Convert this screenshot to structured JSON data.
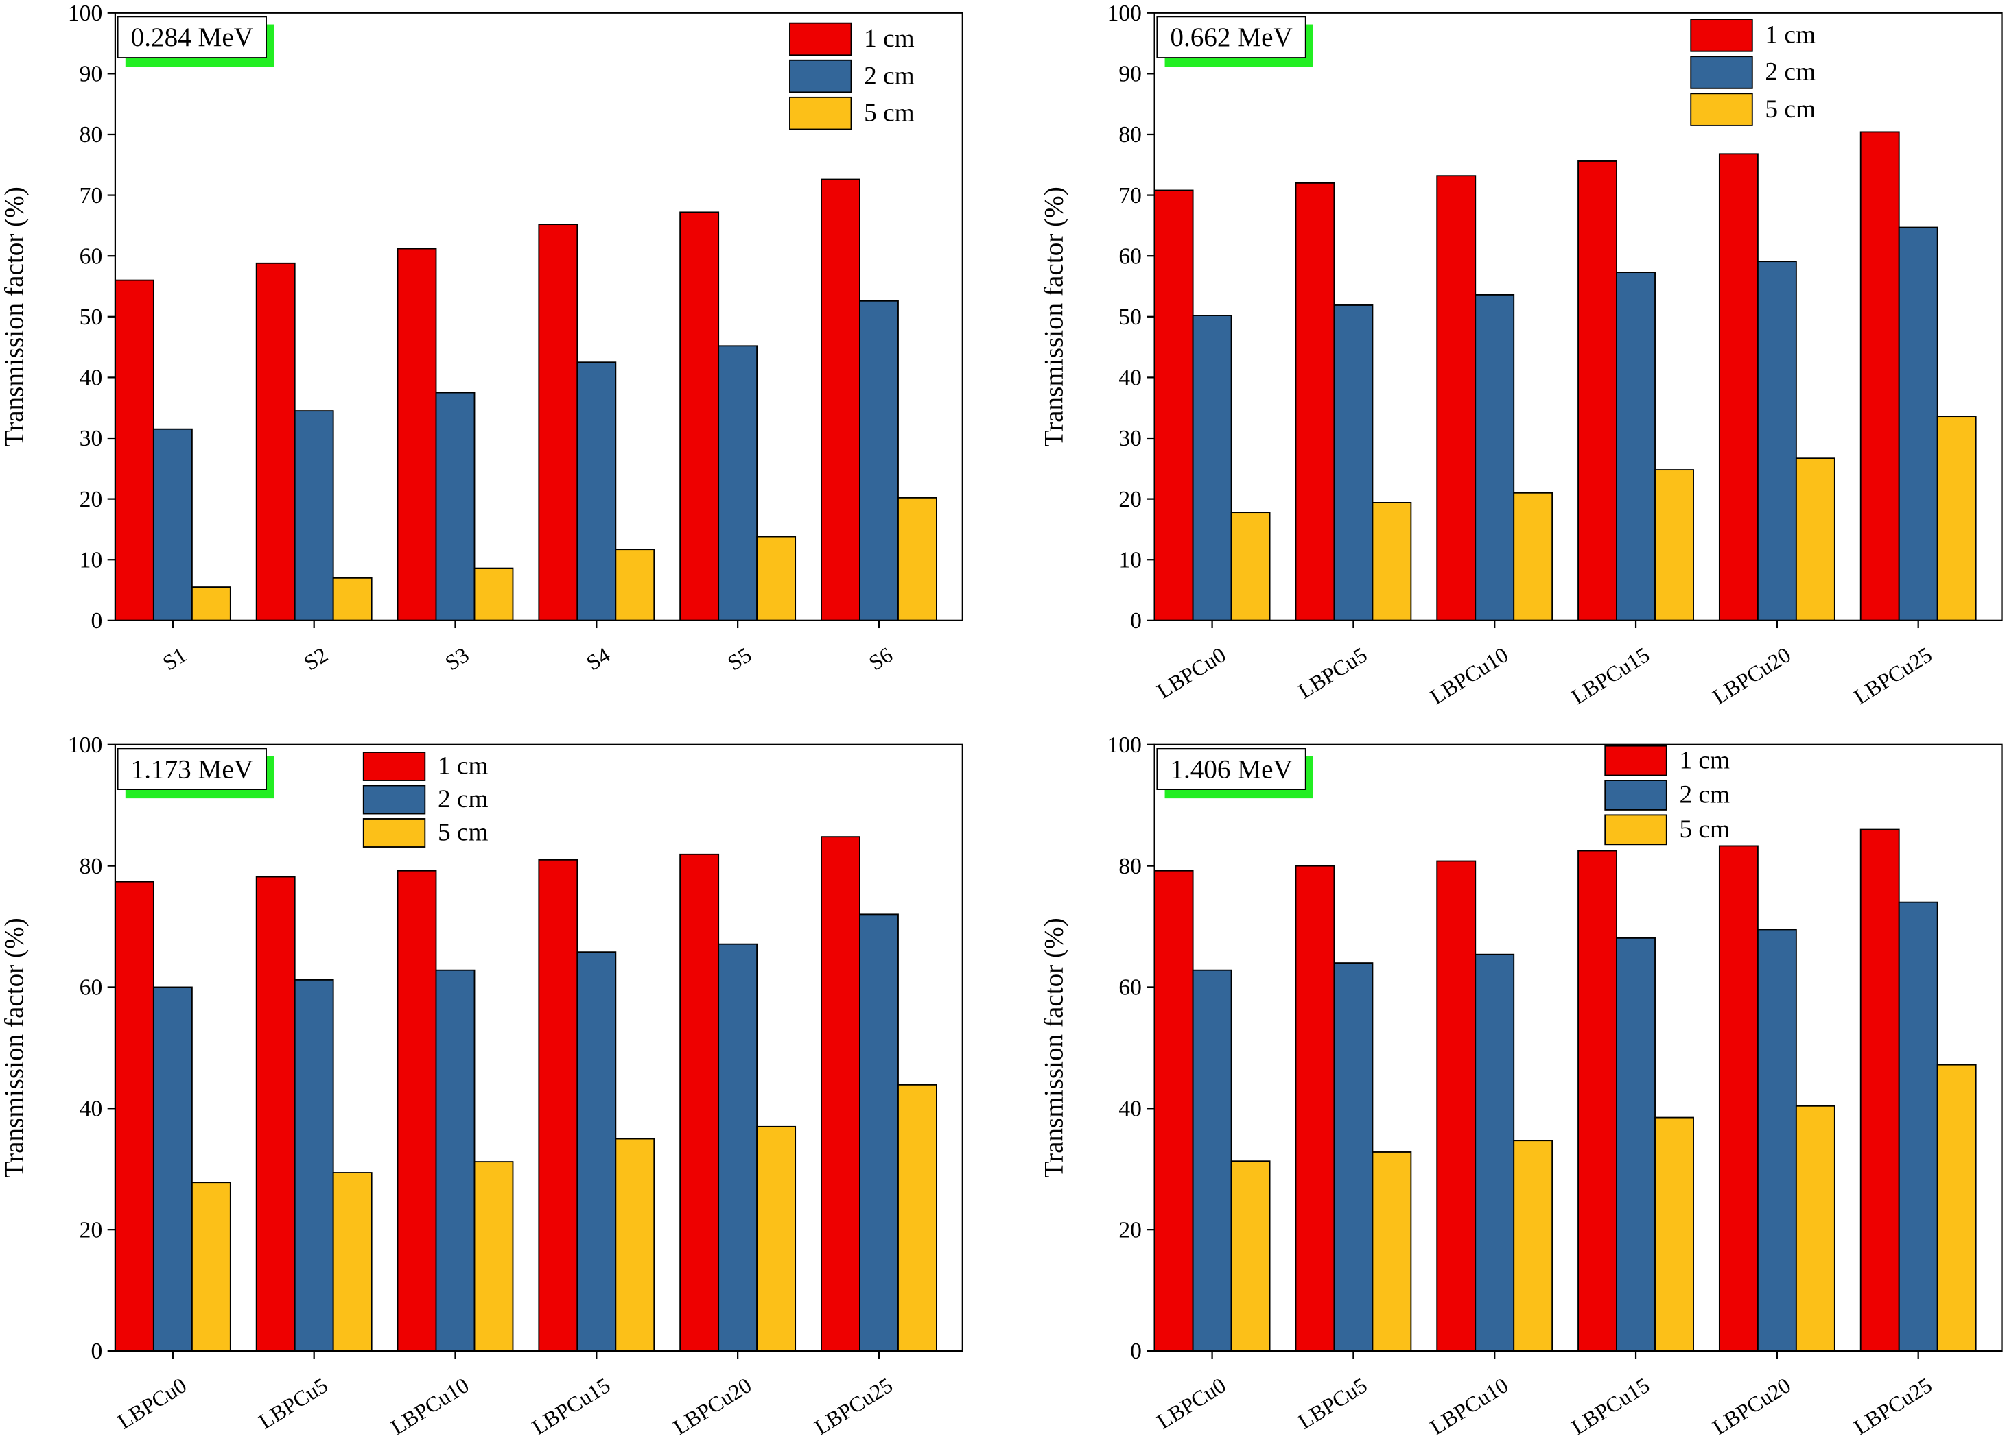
{
  "chart_data": [
    {
      "type": "bar",
      "annotation": "0.284 MeV",
      "y_label": "Transmission factor (%)",
      "categories": [
        "S1",
        "S2",
        "S3",
        "S4",
        "S5",
        "S6"
      ],
      "series": [
        {
          "name": "1 cm",
          "color": "#ee0000",
          "values": [
            56,
            58.8,
            61.2,
            65.2,
            67.2,
            72.6
          ]
        },
        {
          "name": "2 cm",
          "color": "#336699",
          "values": [
            31.5,
            34.5,
            37.5,
            42.5,
            45.2,
            52.6
          ]
        },
        {
          "name": "5 cm",
          "color": "#fcc018",
          "values": [
            5.5,
            7,
            8.6,
            11.7,
            13.8,
            20.2
          ]
        }
      ],
      "ylim": [
        0,
        100
      ],
      "yticks": [
        0,
        10,
        20,
        30,
        40,
        50,
        60,
        70,
        80,
        90,
        100
      ]
    },
    {
      "type": "bar",
      "annotation": "0.662 MeV",
      "y_label": "Transmission factor (%)",
      "categories": [
        "LBPCu0",
        "LBPCu5",
        "LBPCu10",
        "LBPCu15",
        "LBPCu20",
        "LBPCu25"
      ],
      "series": [
        {
          "name": "1 cm",
          "color": "#ee0000",
          "values": [
            70.8,
            72,
            73.2,
            75.6,
            76.8,
            80.4
          ]
        },
        {
          "name": "2 cm",
          "color": "#336699",
          "values": [
            50.2,
            51.9,
            53.6,
            57.3,
            59.1,
            64.7
          ]
        },
        {
          "name": "5 cm",
          "color": "#fcc018",
          "values": [
            17.8,
            19.4,
            21,
            24.8,
            26.7,
            33.6
          ]
        }
      ],
      "ylim": [
        0,
        100
      ],
      "yticks": [
        0,
        10,
        20,
        30,
        40,
        50,
        60,
        70,
        80,
        90,
        100
      ]
    },
    {
      "type": "bar",
      "annotation": "1.173 MeV",
      "y_label": "Transmission factor (%)",
      "categories": [
        "LBPCu0",
        "LBPCu5",
        "LBPCu10",
        "LBPCu15",
        "LBPCu20",
        "LBPCu25"
      ],
      "series": [
        {
          "name": "1 cm",
          "color": "#ee0000",
          "values": [
            77.4,
            78.2,
            79.2,
            81,
            81.9,
            84.8
          ]
        },
        {
          "name": "2 cm",
          "color": "#336699",
          "values": [
            60,
            61.2,
            62.8,
            65.8,
            67.1,
            72
          ]
        },
        {
          "name": "5 cm",
          "color": "#fcc018",
          "values": [
            27.8,
            29.4,
            31.2,
            35,
            37,
            43.9
          ]
        }
      ],
      "ylim": [
        0,
        100
      ],
      "yticks": [
        0,
        20,
        40,
        60,
        80,
        100
      ]
    },
    {
      "type": "bar",
      "annotation": "1.406 MeV",
      "y_label": "Transmission factor (%)",
      "categories": [
        "LBPCu0",
        "LBPCu5",
        "LBPCu10",
        "LBPCu15",
        "LBPCu20",
        "LBPCu25"
      ],
      "series": [
        {
          "name": "1 cm",
          "color": "#ee0000",
          "values": [
            79.2,
            80,
            80.8,
            82.5,
            83.3,
            86
          ]
        },
        {
          "name": "2 cm",
          "color": "#336699",
          "values": [
            62.8,
            64,
            65.4,
            68.1,
            69.5,
            74
          ]
        },
        {
          "name": "5 cm",
          "color": "#fcc018",
          "values": [
            31.3,
            32.8,
            34.7,
            38.5,
            40.4,
            47.2
          ]
        }
      ],
      "ylim": [
        0,
        100
      ],
      "yticks": [
        0,
        20,
        40,
        60,
        80,
        100
      ]
    }
  ]
}
